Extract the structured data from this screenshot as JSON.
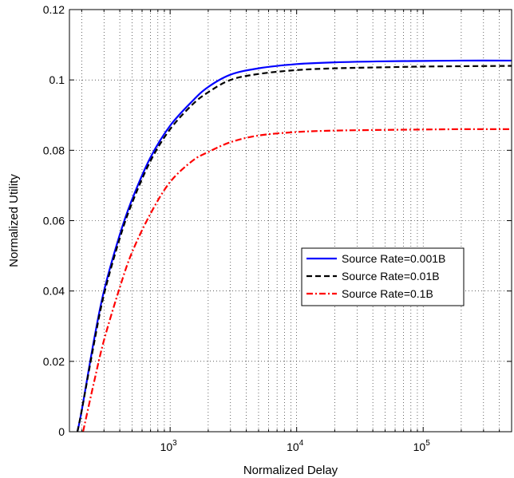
{
  "chart_data": {
    "type": "line",
    "xlabel": "Normalized Delay",
    "ylabel": "Normalized Utility",
    "xscale": "log",
    "xlim": [
      160,
      500000
    ],
    "ylim": [
      0,
      0.12
    ],
    "grid": true,
    "legend_position": "right",
    "x_ticks": [
      {
        "value": 1000,
        "base": "10",
        "exp": "3"
      },
      {
        "value": 10000,
        "base": "10",
        "exp": "4"
      },
      {
        "value": 100000,
        "base": "10",
        "exp": "5"
      }
    ],
    "y_ticks": [
      {
        "value": 0,
        "label": "0"
      },
      {
        "value": 0.02,
        "label": "0.02"
      },
      {
        "value": 0.04,
        "label": "0.04"
      },
      {
        "value": 0.06,
        "label": "0.06"
      },
      {
        "value": 0.08,
        "label": "0.08"
      },
      {
        "value": 0.1,
        "label": "0.1"
      },
      {
        "value": 0.12,
        "label": "0.12"
      }
    ],
    "series": [
      {
        "name": "Source Rate=0.001B",
        "color": "#0000ff",
        "dash": "solid",
        "x": [
          185,
          200,
          250,
          300,
          400,
          500,
          700,
          1000,
          1500,
          2000,
          3000,
          5000,
          10000,
          20000,
          50000,
          100000,
          200000,
          500000
        ],
        "y": [
          0,
          0.006,
          0.026,
          0.04,
          0.056,
          0.066,
          0.078,
          0.087,
          0.094,
          0.098,
          0.1015,
          0.1033,
          0.1045,
          0.105,
          0.1053,
          0.1054,
          0.1055,
          0.1055
        ]
      },
      {
        "name": "Source Rate=0.01B",
        "color": "#000000",
        "dash": "dashed",
        "x": [
          185,
          200,
          250,
          300,
          400,
          500,
          700,
          1000,
          1500,
          2000,
          3000,
          5000,
          10000,
          20000,
          50000,
          100000,
          200000,
          500000
        ],
        "y": [
          0,
          0.006,
          0.025,
          0.039,
          0.055,
          0.065,
          0.077,
          0.086,
          0.093,
          0.0965,
          0.1,
          0.1017,
          0.1028,
          0.1033,
          0.1036,
          0.1038,
          0.1039,
          0.104
        ]
      },
      {
        "name": "Source Rate=0.1B",
        "color": "#ff0000",
        "dash": "dashdot",
        "x": [
          205,
          250,
          300,
          400,
          500,
          700,
          1000,
          1500,
          2000,
          3000,
          5000,
          10000,
          20000,
          50000,
          100000,
          200000,
          500000
        ],
        "y": [
          0,
          0.014,
          0.026,
          0.041,
          0.051,
          0.062,
          0.071,
          0.077,
          0.0795,
          0.0823,
          0.0842,
          0.0852,
          0.0856,
          0.0858,
          0.0859,
          0.086,
          0.086
        ]
      }
    ]
  }
}
